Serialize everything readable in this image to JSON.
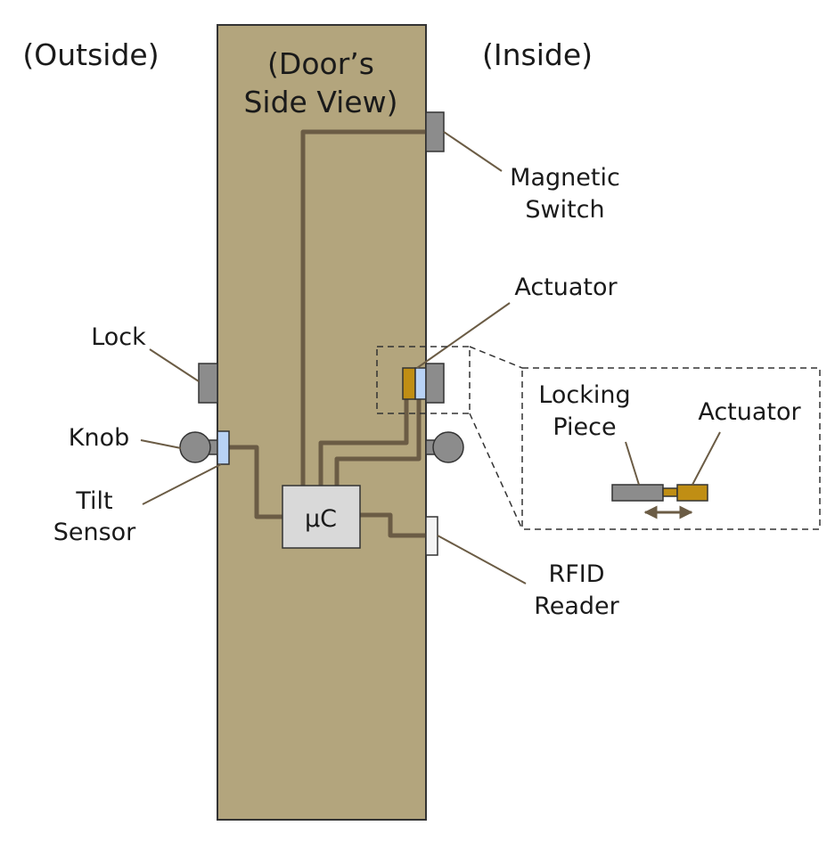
{
  "colors": {
    "door": "#b3a57d",
    "door_stroke": "#333333",
    "wire": "#6b5c45",
    "leader": "#6b5c45",
    "component_gray": "#8c8c8c",
    "knob_gray": "#8c8c8c",
    "actuator_gold": "#c08e14",
    "sensor_blue": "#b8d2f5",
    "mcu_fill": "#d9d9d9",
    "reader_fill": "#f4f4f4"
  },
  "labels": {
    "outside": "(Outside)",
    "inside": "(Inside)",
    "door_view_line1": "(Door’s",
    "door_view_line2": "Side View)",
    "magnetic_switch_line1": "Magnetic",
    "magnetic_switch_line2": "Switch",
    "actuator": "Actuator",
    "lock": "Lock",
    "knob": "Knob",
    "tilt_sensor_line1": "Tilt",
    "tilt_sensor_line2": "Sensor",
    "mcu": "µC",
    "rfid_line1": "RFID",
    "rfid_line2": "Reader",
    "inset_locking_piece_line1": "Locking",
    "inset_locking_piece_line2": "Piece",
    "inset_actuator": "Actuator"
  },
  "icons": {
    "knob": "knob-icon",
    "motion_arrow": "double-arrow-icon"
  }
}
